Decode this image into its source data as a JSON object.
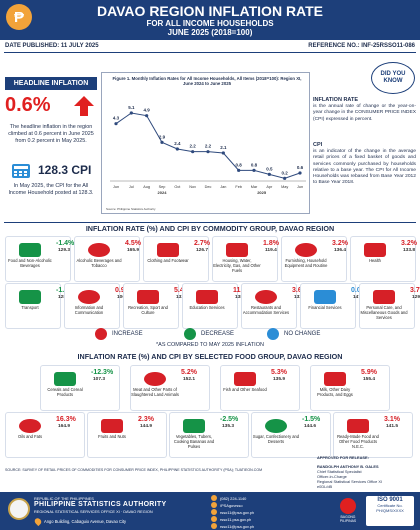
{
  "header": {
    "title": "DAVAO REGION INFLATION RATE",
    "subtitle": "FOR ALL INCOME HOUSEHOLDS",
    "period": "JUNE 2025 (2018=100)",
    "logo_glyph": "₱"
  },
  "meta": {
    "date_published": "DATE PUBLISHED: 11 JULY 2025",
    "reference": "REFERENCE NO.: INF-25RSSO11-086"
  },
  "headline": {
    "badge": "HEADLINE INFLATION",
    "rate": "0.6%",
    "text": "The headline inflation in the region climbed at 0.6 percent in June 2025 from 0.2 percent in May 2025.",
    "cpi": "128.3 CPI",
    "cpi_text": "In May 2025, the CPI for the All Income Household posted at 128.3."
  },
  "chart_data": {
    "type": "line",
    "title": "Figure 1. Monthly Inflation Rates for All Income Households, All Items (2018=100): Region XI, June 2024 to June 2025",
    "categories": [
      "Jun",
      "Jul",
      "Aug",
      "Sep",
      "Oct",
      "Nov",
      "Dec",
      "Jan",
      "Feb",
      "Mar",
      "Apr",
      "May",
      "Jun"
    ],
    "year_labels": [
      "2024",
      "2025"
    ],
    "values": [
      4.3,
      5.1,
      4.9,
      2.9,
      2.4,
      2.2,
      2.2,
      2.1,
      0.8,
      0.8,
      0.5,
      0.2,
      0.6
    ],
    "value_labels": [
      "4.3",
      "5.1",
      "4.9",
      "2.9",
      "2.4",
      "2.2",
      "2.2",
      "2.1",
      "0.8",
      "0.8",
      "0.5",
      "0.2",
      "0.6"
    ],
    "ylim": [
      0,
      6
    ],
    "source": "Source: Philippine Statistics Authority",
    "color": "#2f4a7d"
  },
  "did_you_know": "DID YOU KNOW",
  "definitions": [
    {
      "title": "INFLATION RATE",
      "text": "is the annual rate of change or the year-on-year change in the CONSUMER PRICE INDEX (CPI) expressed in percent."
    },
    {
      "title": "CPI",
      "text": "is an indicator of the change in the average retail prices of a fixed basket of goods and services commonly purchased by households relative to a base year. The CPI for All Income Households was rebased from Base Year 2012 to Base Year 2018."
    }
  ],
  "commodity": {
    "title": "INFLATION RATE (%) AND CPI BY COMMODITY GROUP, DAVAO REGION",
    "items": [
      {
        "label": "Food and Non-Alcoholic Beverages",
        "pct": "-1.4%",
        "idx": "129.3",
        "dir": "dec",
        "icon": "food-icon"
      },
      {
        "label": "Alcoholic Beverages and Tobacco",
        "pct": "4.5%",
        "idx": "165.9",
        "dir": "inc",
        "icon": "bottle-icon"
      },
      {
        "label": "Clothing and Footwear",
        "pct": "2.7%",
        "idx": "126.7",
        "dir": "inc",
        "icon": "shirt-icon"
      },
      {
        "label": "Housing, Water, Electricity, Gas, and Other Fuels",
        "pct": "1.8%",
        "idx": "119.4",
        "dir": "inc",
        "icon": "house-icon"
      },
      {
        "label": "Furnishing, Household Equipment and Routine",
        "pct": "3.2%",
        "idx": "136.4",
        "dir": "inc",
        "icon": "sofa-icon"
      },
      {
        "label": "Health",
        "pct": "3.2%",
        "idx": "133.8",
        "dir": "inc",
        "icon": "health-icon"
      },
      {
        "label": "Transport",
        "pct": "-1.7%",
        "idx": "128.8",
        "dir": "dec",
        "icon": "bus-icon"
      },
      {
        "label": "Information and Communication",
        "pct": "0.9%",
        "idx": "106.9",
        "dir": "inc",
        "icon": "phone-icon"
      },
      {
        "label": "Recreation, Sport and Culture",
        "pct": "5.4%",
        "idx": "133.6",
        "dir": "inc",
        "icon": "ball-icon"
      },
      {
        "label": "Education Services",
        "pct": "11.7%",
        "idx": "138.3",
        "dir": "inc",
        "icon": "book-icon"
      },
      {
        "label": "Restaurants and Accommodation Services",
        "pct": "3.6%",
        "idx": "132.7",
        "dir": "inc",
        "icon": "bed-icon"
      },
      {
        "label": "Financial Services",
        "pct": "0.0%",
        "idx": "147.2",
        "dir": "nc",
        "icon": "money-icon"
      },
      {
        "label": "Personal Care, and Miscellaneous Goods and Services",
        "pct": "3.7%",
        "idx": "129.9",
        "dir": "inc",
        "icon": "care-icon"
      }
    ]
  },
  "legend": {
    "increase": "INCREASE",
    "decrease": "DECREASE",
    "no_change": "NO CHANGE",
    "note": "*AS COMPARED TO MAY 2025 INFLATION"
  },
  "food": {
    "title": "INFLATION RATE (%) AND CPI BY SELECTED FOOD GROUP, DAVAO REGION",
    "items": [
      {
        "label": "Cereals and Cereal Products",
        "pct": "-12.3%",
        "idx": "107.3",
        "dir": "dec",
        "icon": "rice-icon"
      },
      {
        "label": "Meat and Other Parts of Slaughtered Land Animals",
        "pct": "5.2%",
        "idx": "152.1",
        "dir": "inc",
        "icon": "meat-icon"
      },
      {
        "label": "Fish and Other Seafood",
        "pct": "5.3%",
        "idx": "135.9",
        "dir": "inc",
        "icon": "fish-icon"
      },
      {
        "label": "Milk, Other Dairy Products, and Eggs",
        "pct": "5.9%",
        "idx": "155.4",
        "dir": "inc",
        "icon": "milk-icon"
      },
      {
        "label": "Oils and Fats",
        "pct": "16.3%",
        "idx": "164.9",
        "dir": "inc",
        "icon": "oil-icon"
      },
      {
        "label": "Fruits and Nuts",
        "pct": "2.3%",
        "idx": "144.9",
        "dir": "inc",
        "icon": "fruit-icon"
      },
      {
        "label": "Vegetables, Tubers, Cooking Bananas and Pulses",
        "pct": "-2.5%",
        "idx": "135.3",
        "dir": "dec",
        "icon": "vegetable-icon"
      },
      {
        "label": "Sugar, Confectionery and Desserts",
        "pct": "-1.5%",
        "idx": "144.6",
        "dir": "dec",
        "icon": "candy-icon"
      },
      {
        "label": "Ready-Made Food and Other Food Products N.E.C.",
        "pct": "3.1%",
        "idx": "141.5",
        "dir": "inc",
        "icon": "readyfood-icon"
      }
    ]
  },
  "source_note": "SOURCE: SURVEY OF RETAIL PRICES OF COMMODITIES FOR CONSUMER PRICE INDEX, PHILIPPINE STATISTICS AUTHORITY (PSA); TUATIEON.COM",
  "approval": {
    "label": "APPROVED FOR RELEASE:",
    "name": "RANDOLPH ANTHONY B. GALES",
    "role1": "Chief Statistical Specialist",
    "role2": "Officer-in-Charge",
    "role3": "Regional Statistical Services Office XI",
    "extra": "e0DL/dB"
  },
  "footer": {
    "republic": "REPUBLIC OF THE PHILIPPINES",
    "agency": "PHILIPPINE STATISTICS AUTHORITY",
    "office": "REGIONAL STATISTICAL SERVICES OFFICE XI · DAVAO REGION",
    "address": "Ango Building, Cabaguio Avenue, Davao City",
    "contacts": [
      "(082) 224-1140",
      "/PSAgovrsso",
      "rsso11@psa.gov.ph",
      "rsso11.psa.gov.ph",
      "rsso11@psa.gov.ph"
    ],
    "bp": "BAGONG PILIPINAS",
    "iso": "ISO 9001",
    "iso_sub": "Certificate No. PH/QMS/XXXX"
  },
  "colors": {
    "navy": "#1d3f7a",
    "increase": "#d62027",
    "decrease": "#159347",
    "nochange": "#2b8dd6"
  }
}
